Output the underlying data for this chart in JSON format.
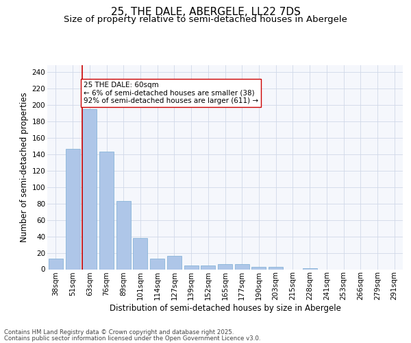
{
  "title": "25, THE DALE, ABERGELE, LL22 7DS",
  "subtitle": "Size of property relative to semi-detached houses in Abergele",
  "xlabel": "Distribution of semi-detached houses by size in Abergele",
  "ylabel": "Number of semi-detached properties",
  "categories": [
    "38sqm",
    "51sqm",
    "63sqm",
    "76sqm",
    "89sqm",
    "101sqm",
    "114sqm",
    "127sqm",
    "139sqm",
    "152sqm",
    "165sqm",
    "177sqm",
    "190sqm",
    "203sqm",
    "215sqm",
    "228sqm",
    "241sqm",
    "253sqm",
    "266sqm",
    "279sqm",
    "291sqm"
  ],
  "values": [
    13,
    146,
    195,
    143,
    83,
    38,
    13,
    16,
    5,
    5,
    6,
    6,
    3,
    3,
    0,
    1,
    0,
    0,
    0,
    0,
    0
  ],
  "bar_color": "#aec6e8",
  "bar_edgecolor": "#7aadd4",
  "highlight_index": 2,
  "highlight_line_color": "#cc0000",
  "annotation_text": "25 THE DALE: 60sqm\n← 6% of semi-detached houses are smaller (38)\n92% of semi-detached houses are larger (611) →",
  "annotation_box_edgecolor": "#cc0000",
  "annotation_box_facecolor": "#ffffff",
  "ylim": [
    0,
    248
  ],
  "yticks": [
    0,
    20,
    40,
    60,
    80,
    100,
    120,
    140,
    160,
    180,
    200,
    220,
    240
  ],
  "grid_color": "#d0d8e8",
  "background_color": "#f5f7fc",
  "footer_line1": "Contains HM Land Registry data © Crown copyright and database right 2025.",
  "footer_line2": "Contains public sector information licensed under the Open Government Licence v3.0.",
  "title_fontsize": 11,
  "subtitle_fontsize": 9.5,
  "axis_fontsize": 8.5,
  "tick_fontsize": 7.5,
  "annotation_fontsize": 7.5
}
